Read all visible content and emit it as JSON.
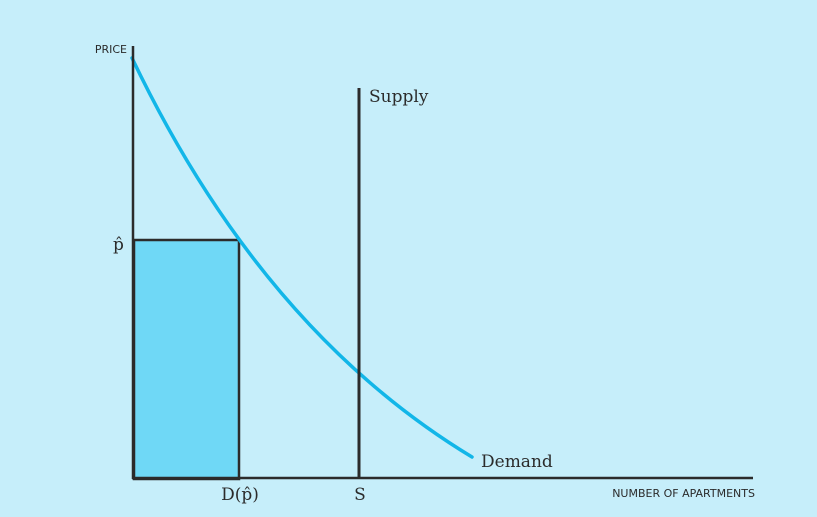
{
  "diagram": {
    "y_axis_label": "PRICE",
    "x_axis_label": "NUMBER OF APARTMENTS",
    "supply_label": "Supply",
    "demand_label": "Demand",
    "price_label": "p̂",
    "demand_at_price_label": "D(p̂)",
    "supply_quantity_label": "S",
    "colors": {
      "background": "#c6eefa",
      "demand_curve": "#12b6e8",
      "shaded_region": "#6fd8f6",
      "axes": "#2b2b2b"
    }
  }
}
